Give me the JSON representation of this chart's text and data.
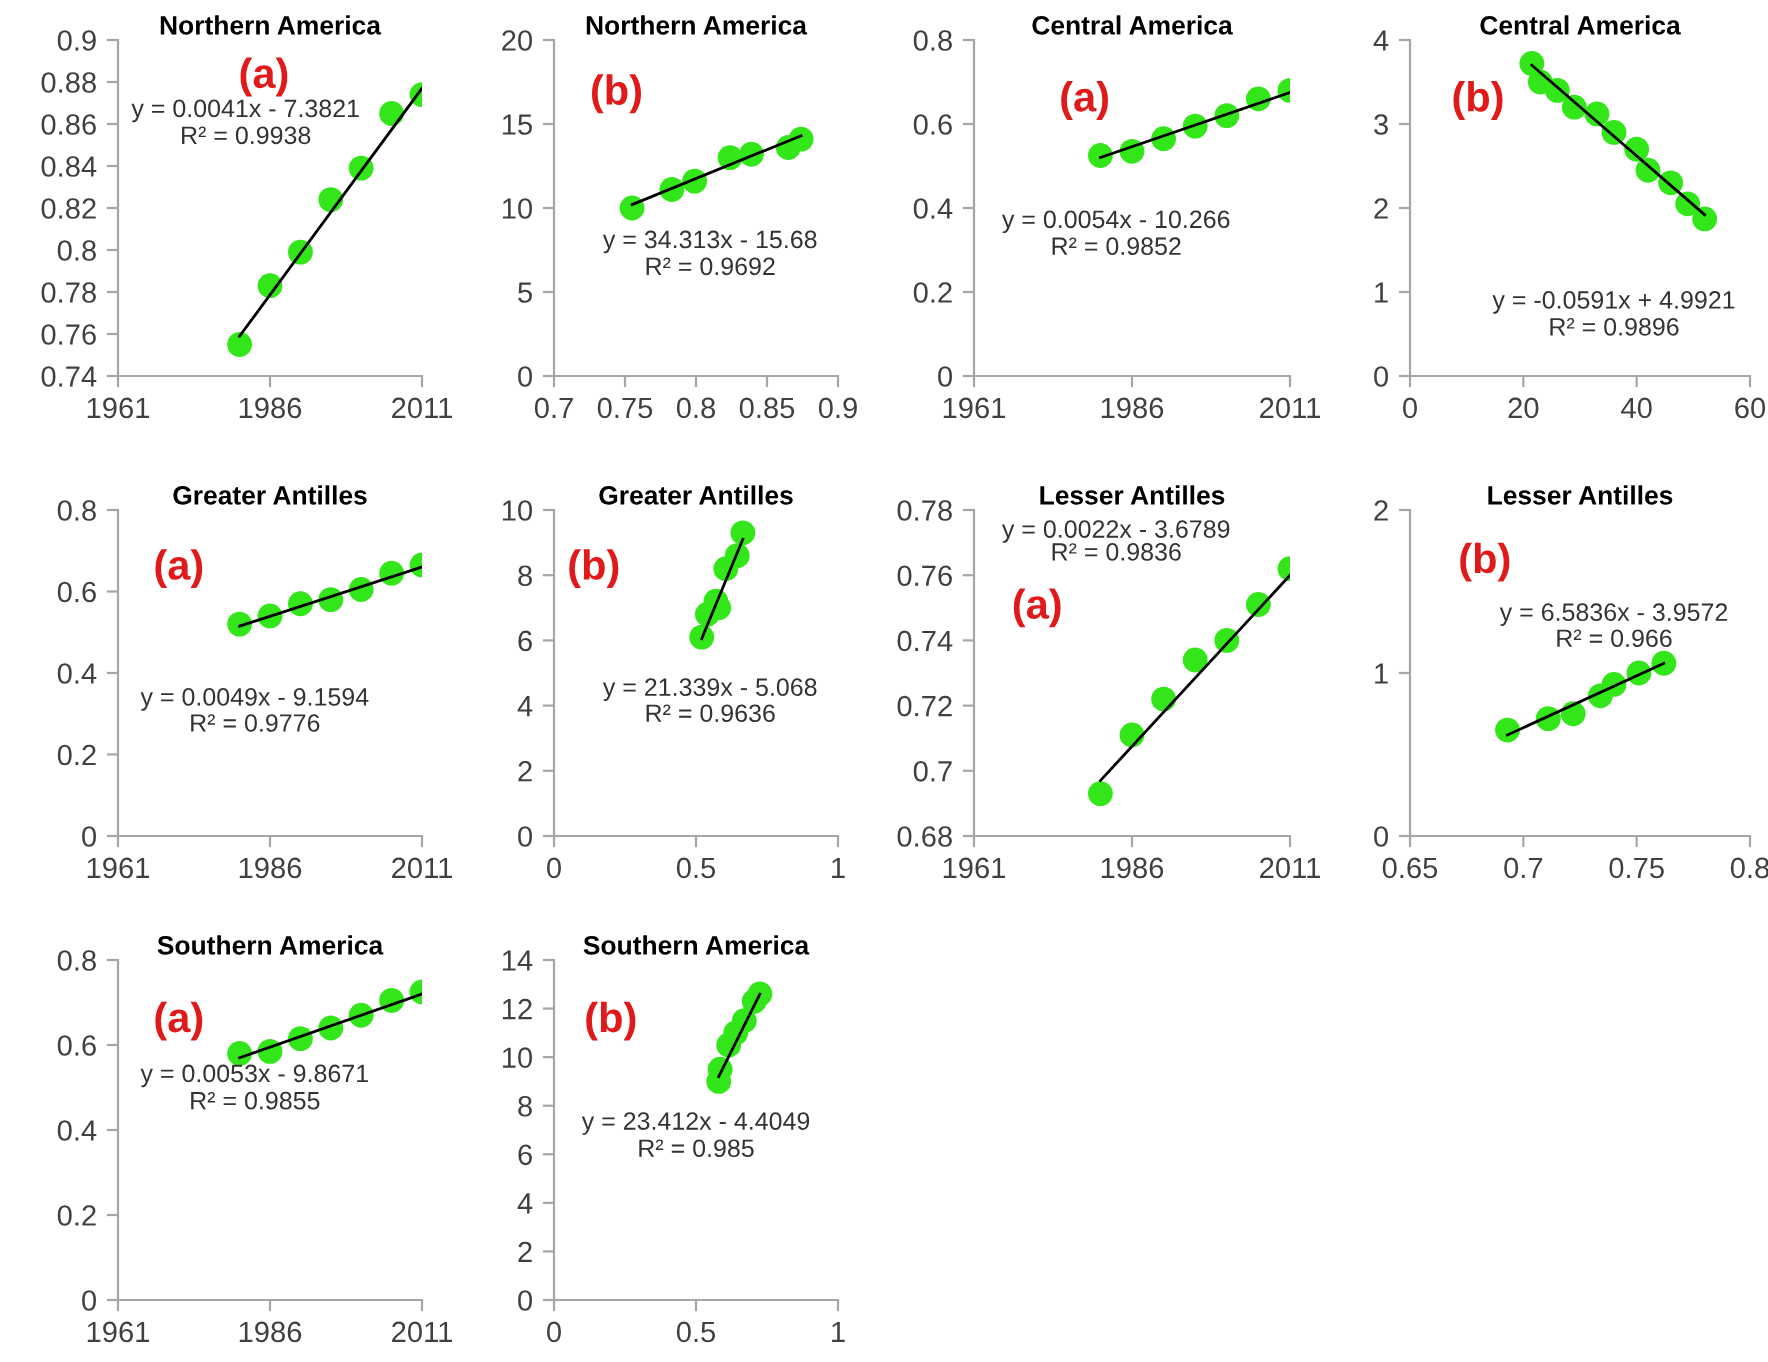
{
  "chart_data": [
    {
      "type": "scatter",
      "title": "Northern America",
      "annotations": [
        "(a)",
        "y = 0.0041x - 7.3821",
        "R² = 0.9938"
      ],
      "xlim": [
        1961,
        2011
      ],
      "xticks": [
        1961,
        1986,
        2011
      ],
      "ylim": [
        0.74,
        0.9
      ],
      "yticks": [
        0.74,
        0.76,
        0.78,
        0.8,
        0.82,
        0.84,
        0.86,
        0.88,
        0.9
      ],
      "grid": false,
      "series": [
        {
          "color": "#33e619",
          "marker": "circle",
          "x": [
            1981,
            1986,
            1991,
            1996,
            2001,
            2006,
            2011
          ],
          "values": [
            0.755,
            0.783,
            0.799,
            0.824,
            0.839,
            0.865,
            0.874
          ]
        },
        {
          "type": "line",
          "color": "#000000",
          "marker": "none",
          "x": [
            1981,
            2011
          ],
          "values": [
            0.759,
            0.877
          ]
        }
      ]
    },
    {
      "type": "scatter",
      "title": "Northern America",
      "annotations": [
        "(b)",
        "y = 34.313x - 15.68",
        "R² = 0.9692"
      ],
      "xlim": [
        0.7,
        0.9
      ],
      "xticks": [
        0.7,
        0.75,
        0.8,
        0.85,
        0.9
      ],
      "ylim": [
        0,
        20
      ],
      "yticks": [
        0,
        5,
        10,
        15,
        20
      ],
      "grid": false,
      "series": [
        {
          "color": "#33e619",
          "marker": "circle",
          "x": [
            0.755,
            0.783,
            0.799,
            0.824,
            0.839,
            0.865,
            0.874
          ],
          "values": [
            10.0,
            11.1,
            11.6,
            13.0,
            13.2,
            13.6,
            14.1
          ]
        },
        {
          "type": "line",
          "color": "#000000",
          "marker": "none",
          "x": [
            0.755,
            0.874
          ],
          "values": [
            10.2,
            14.3
          ]
        }
      ]
    },
    {
      "type": "scatter",
      "title": "Central America",
      "annotations": [
        "(a)",
        "y = 0.0054x - 10.266",
        "R² = 0.9852"
      ],
      "xlim": [
        1961,
        2011
      ],
      "xticks": [
        1961,
        1986,
        2011
      ],
      "ylim": [
        0,
        0.8
      ],
      "yticks": [
        0,
        0.2,
        0.4,
        0.6,
        0.8
      ],
      "grid": false,
      "series": [
        {
          "color": "#33e619",
          "marker": "circle",
          "x": [
            1981,
            1986,
            1991,
            1996,
            2001,
            2006,
            2011
          ],
          "values": [
            0.525,
            0.535,
            0.565,
            0.595,
            0.62,
            0.66,
            0.68
          ]
        },
        {
          "type": "line",
          "color": "#000000",
          "marker": "none",
          "x": [
            1981,
            2011
          ],
          "values": [
            0.52,
            0.675
          ]
        }
      ]
    },
    {
      "type": "scatter",
      "title": "Central America",
      "annotations": [
        "(b)",
        "y = -0.0591x + 4.9921",
        "R² = 0.9896"
      ],
      "xlim": [
        0,
        60
      ],
      "xticks": [
        0,
        20,
        40,
        60
      ],
      "ylim": [
        0,
        4
      ],
      "yticks": [
        0,
        1,
        2,
        3,
        4
      ],
      "grid": false,
      "series": [
        {
          "color": "#33e619",
          "marker": "circle",
          "x": [
            21.5,
            23,
            26,
            29,
            33,
            36,
            40,
            42,
            46,
            49,
            52
          ],
          "values": [
            3.72,
            3.5,
            3.4,
            3.2,
            3.12,
            2.9,
            2.7,
            2.45,
            2.3,
            2.05,
            1.87
          ]
        },
        {
          "type": "line",
          "color": "#000000",
          "marker": "none",
          "x": [
            21.5,
            52
          ],
          "values": [
            3.7,
            1.92
          ]
        }
      ]
    },
    {
      "type": "scatter",
      "title": "Greater Antilles",
      "annotations": [
        "(a)",
        "y = 0.0049x - 9.1594",
        "R² = 0.9776"
      ],
      "xlim": [
        1961,
        2011
      ],
      "xticks": [
        1961,
        1986,
        2011
      ],
      "ylim": [
        0,
        0.8
      ],
      "yticks": [
        0,
        0.2,
        0.4,
        0.6,
        0.8
      ],
      "grid": false,
      "series": [
        {
          "color": "#33e619",
          "marker": "circle",
          "x": [
            1981,
            1986,
            1991,
            1996,
            2001,
            2006,
            2011
          ],
          "values": [
            0.52,
            0.54,
            0.57,
            0.58,
            0.605,
            0.645,
            0.665
          ]
        },
        {
          "type": "line",
          "color": "#000000",
          "marker": "none",
          "x": [
            1981,
            2011
          ],
          "values": [
            0.515,
            0.66
          ]
        }
      ]
    },
    {
      "type": "scatter",
      "title": "Greater Antilles",
      "annotations": [
        "(b)",
        "y = 21.339x - 5.068",
        "R² = 0.9636"
      ],
      "xlim": [
        0,
        1
      ],
      "xticks": [
        0,
        0.5,
        1
      ],
      "ylim": [
        0,
        10
      ],
      "yticks": [
        0,
        2,
        4,
        6,
        8,
        10
      ],
      "grid": false,
      "series": [
        {
          "color": "#33e619",
          "marker": "circle",
          "x": [
            0.52,
            0.54,
            0.57,
            0.58,
            0.605,
            0.645,
            0.665
          ],
          "values": [
            6.1,
            6.8,
            7.2,
            7.0,
            8.2,
            8.6,
            9.3
          ]
        },
        {
          "type": "line",
          "color": "#000000",
          "marker": "none",
          "x": [
            0.52,
            0.665
          ],
          "values": [
            6.05,
            9.1
          ]
        }
      ]
    },
    {
      "type": "scatter",
      "title": "Lesser Antilles",
      "annotations": [
        "(a)",
        "y = 0.0022x - 3.6789",
        "R² = 0.9836"
      ],
      "xlim": [
        1961,
        2011
      ],
      "xticks": [
        1961,
        1986,
        2011
      ],
      "ylim": [
        0.68,
        0.78
      ],
      "yticks": [
        0.68,
        0.7,
        0.72,
        0.74,
        0.76,
        0.78
      ],
      "grid": false,
      "series": [
        {
          "color": "#33e619",
          "marker": "circle",
          "x": [
            1981,
            1986,
            1991,
            1996,
            2001,
            2006,
            2011
          ],
          "values": [
            0.693,
            0.711,
            0.722,
            0.734,
            0.74,
            0.751,
            0.762
          ]
        },
        {
          "type": "line",
          "color": "#000000",
          "marker": "none",
          "x": [
            1981,
            2011
          ],
          "values": [
            0.697,
            0.76
          ]
        }
      ]
    },
    {
      "type": "scatter",
      "title": "Lesser Antilles",
      "annotations": [
        "(b)",
        "y = 6.5836x - 3.9572",
        "R² = 0.966"
      ],
      "xlim": [
        0.65,
        0.8
      ],
      "xticks": [
        0.65,
        0.7,
        0.75,
        0.8
      ],
      "ylim": [
        0,
        2
      ],
      "yticks": [
        0,
        1,
        2
      ],
      "grid": false,
      "series": [
        {
          "color": "#33e619",
          "marker": "circle",
          "x": [
            0.693,
            0.711,
            0.722,
            0.734,
            0.74,
            0.751,
            0.762
          ],
          "values": [
            0.65,
            0.72,
            0.75,
            0.86,
            0.93,
            1.0,
            1.06
          ]
        },
        {
          "type": "line",
          "color": "#000000",
          "marker": "none",
          "x": [
            0.693,
            0.762
          ],
          "values": [
            0.62,
            1.06
          ]
        }
      ]
    },
    {
      "type": "scatter",
      "title": "Southern America",
      "annotations": [
        "(a)",
        "y = 0.0053x - 9.8671",
        "R² = 0.9855"
      ],
      "xlim": [
        1961,
        2011
      ],
      "xticks": [
        1961,
        1986,
        2011
      ],
      "ylim": [
        0,
        0.8
      ],
      "yticks": [
        0,
        0.2,
        0.4,
        0.6,
        0.8
      ],
      "grid": false,
      "series": [
        {
          "color": "#33e619",
          "marker": "circle",
          "x": [
            1981,
            1986,
            1991,
            1996,
            2001,
            2006,
            2011
          ],
          "values": [
            0.58,
            0.585,
            0.615,
            0.64,
            0.67,
            0.705,
            0.725
          ]
        },
        {
          "type": "line",
          "color": "#000000",
          "marker": "none",
          "x": [
            1981,
            2011
          ],
          "values": [
            0.57,
            0.72
          ]
        }
      ]
    },
    {
      "type": "scatter",
      "title": "Southern America",
      "annotations": [
        "(b)",
        "y = 23.412x - 4.4049",
        "R² = 0.985"
      ],
      "xlim": [
        0,
        1
      ],
      "xticks": [
        0,
        0.5,
        1
      ],
      "ylim": [
        0,
        14
      ],
      "yticks": [
        0,
        2,
        4,
        6,
        8,
        10,
        12,
        14
      ],
      "grid": false,
      "series": [
        {
          "color": "#33e619",
          "marker": "circle",
          "x": [
            0.58,
            0.585,
            0.615,
            0.64,
            0.67,
            0.705,
            0.725
          ],
          "values": [
            9.0,
            9.5,
            10.5,
            11.0,
            11.5,
            12.3,
            12.6
          ]
        },
        {
          "type": "line",
          "color": "#000000",
          "marker": "none",
          "x": [
            0.58,
            0.725
          ],
          "values": [
            9.2,
            12.6
          ]
        }
      ]
    }
  ]
}
